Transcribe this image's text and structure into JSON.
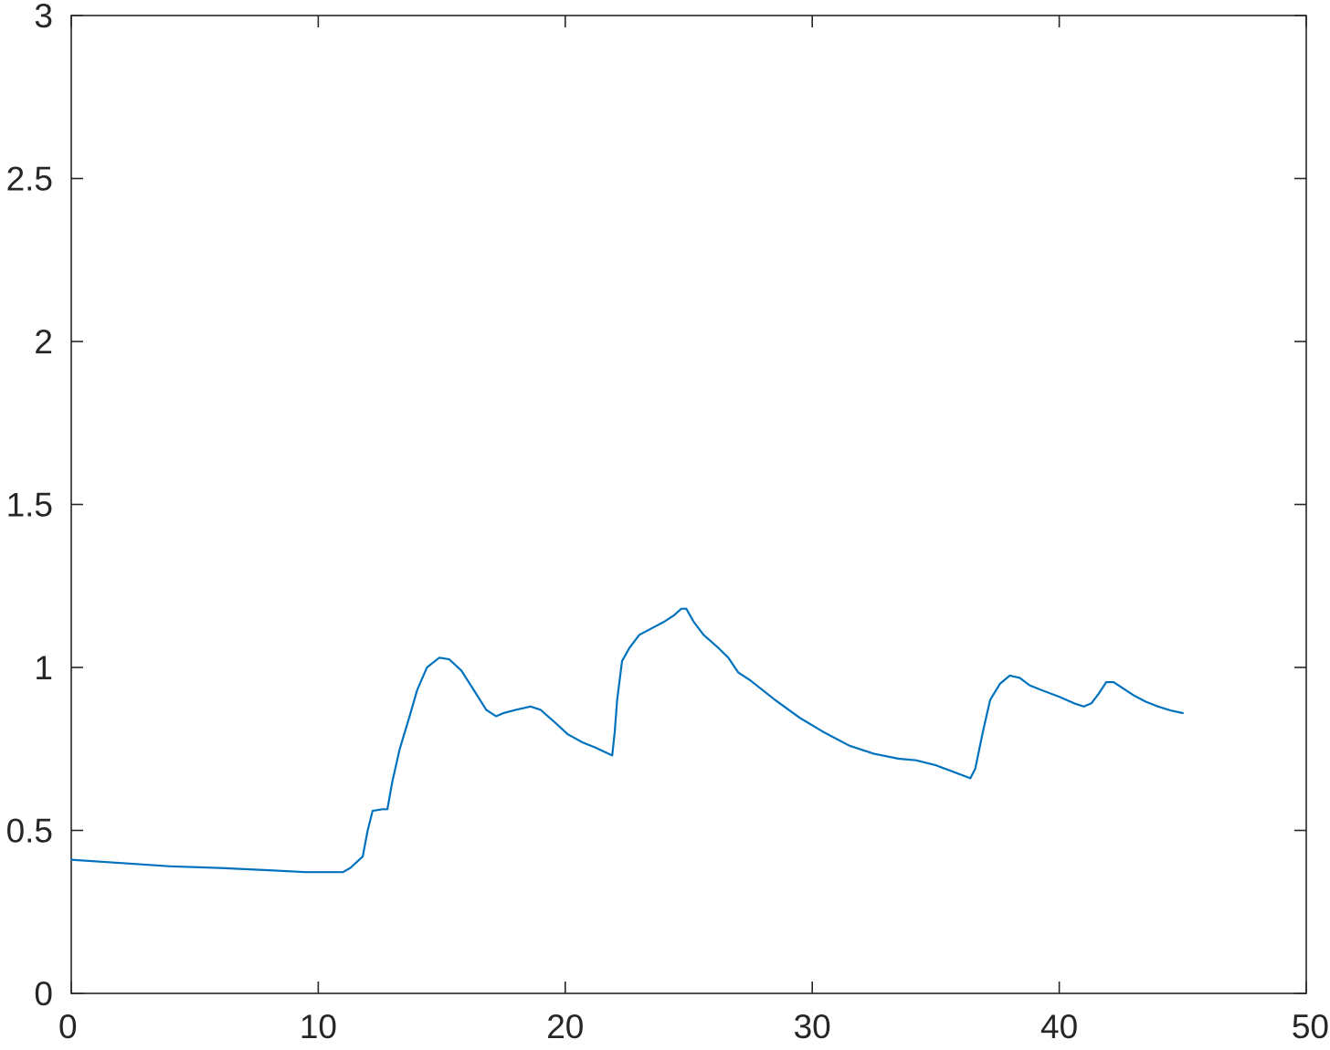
{
  "chart_data": {
    "type": "line",
    "title": "",
    "xlabel": "",
    "ylabel": "",
    "xlim": [
      0,
      50
    ],
    "ylim": [
      0,
      3
    ],
    "x_ticks": [
      0,
      10,
      20,
      30,
      40,
      50
    ],
    "y_ticks": [
      0,
      0.5,
      1,
      1.5,
      2,
      2.5,
      3
    ],
    "x_tick_labels": [
      "0",
      "10",
      "20",
      "30",
      "40",
      "50"
    ],
    "y_tick_labels": [
      "0",
      "0.5",
      "1",
      "1.5",
      "2",
      "2.5",
      "3"
    ],
    "grid": false,
    "line_color": "#0072BD",
    "axis_color": "#262626",
    "series": [
      {
        "x": [
          0,
          2,
          4,
          6,
          8,
          9.5,
          11,
          11.3,
          11.8,
          12.0,
          12.2,
          12.6,
          12.8,
          13.0,
          13.3,
          13.7,
          14.0,
          14.4,
          14.9,
          15.3,
          15.8,
          16.3,
          16.8,
          17.2,
          17.5,
          18.0,
          18.6,
          19.0,
          19.6,
          20.1,
          20.7,
          21.2,
          21.9,
          22.0,
          22.1,
          22.3,
          22.6,
          23.0,
          23.5,
          24.0,
          24.4,
          24.7,
          24.9,
          25.2,
          25.6,
          26.2,
          26.6,
          27.0,
          27.5,
          28.5,
          29.5,
          30.5,
          31.5,
          32.5,
          33.5,
          34.2,
          35.0,
          35.7,
          36.4,
          36.6,
          36.9,
          37.2,
          37.6,
          38.0,
          38.4,
          38.8,
          39.3,
          40.0,
          40.6,
          41.0,
          41.3,
          41.6,
          41.9,
          42.2,
          42.5,
          43.0,
          43.5,
          44.0,
          44.5,
          45.0
        ],
        "y": [
          0.41,
          0.4,
          0.39,
          0.385,
          0.378,
          0.372,
          0.372,
          0.385,
          0.42,
          0.5,
          0.56,
          0.565,
          0.565,
          0.65,
          0.75,
          0.85,
          0.93,
          1.0,
          1.03,
          1.025,
          0.99,
          0.93,
          0.87,
          0.85,
          0.86,
          0.87,
          0.88,
          0.87,
          0.83,
          0.795,
          0.77,
          0.755,
          0.73,
          0.8,
          0.9,
          1.02,
          1.06,
          1.1,
          1.12,
          1.14,
          1.16,
          1.18,
          1.18,
          1.14,
          1.1,
          1.06,
          1.03,
          0.985,
          0.96,
          0.9,
          0.845,
          0.8,
          0.76,
          0.735,
          0.72,
          0.715,
          0.7,
          0.68,
          0.66,
          0.69,
          0.8,
          0.9,
          0.95,
          0.975,
          0.968,
          0.945,
          0.93,
          0.91,
          0.89,
          0.88,
          0.89,
          0.92,
          0.955,
          0.955,
          0.94,
          0.915,
          0.895,
          0.88,
          0.868,
          0.86
        ]
      }
    ]
  }
}
